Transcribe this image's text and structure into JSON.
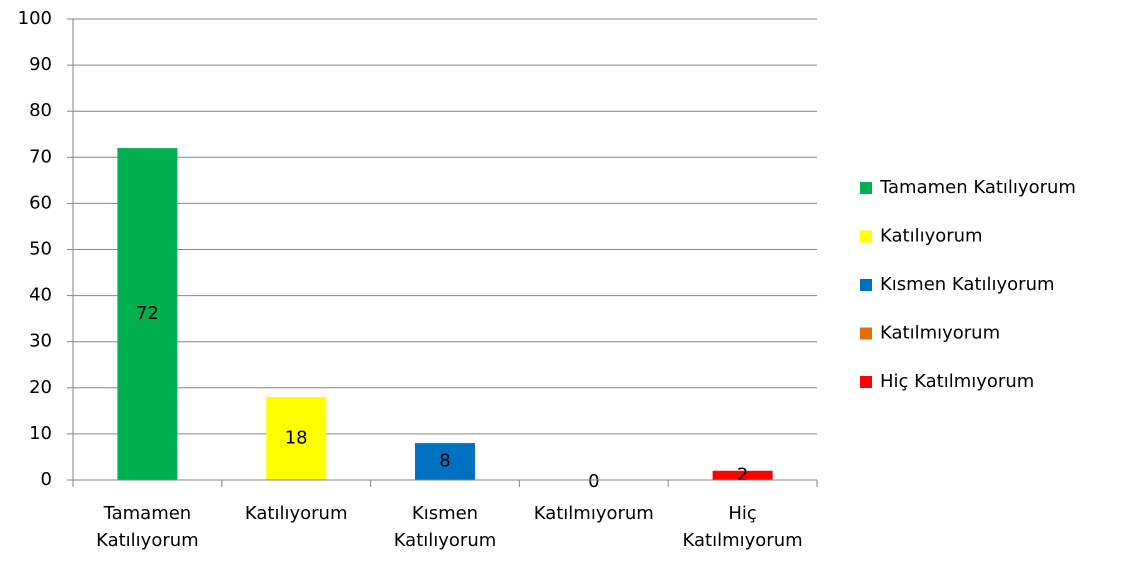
{
  "chart_data": {
    "type": "bar",
    "categories": [
      "Tamamen Katılıyorum",
      "Katılıyorum",
      "Kısmen Katılıyorum",
      "Katılmıyorum",
      "Hiç Katılmıyorum"
    ],
    "values": [
      72,
      18,
      8,
      0,
      2
    ],
    "colors": [
      "#00b050",
      "#ffff00",
      "#0070c0",
      "#e36c09",
      "#ff0000"
    ],
    "ylim": [
      0,
      100
    ],
    "yticks": [
      0,
      10,
      20,
      30,
      40,
      50,
      60,
      70,
      80,
      90,
      100
    ],
    "grid": true,
    "legend": "right"
  }
}
